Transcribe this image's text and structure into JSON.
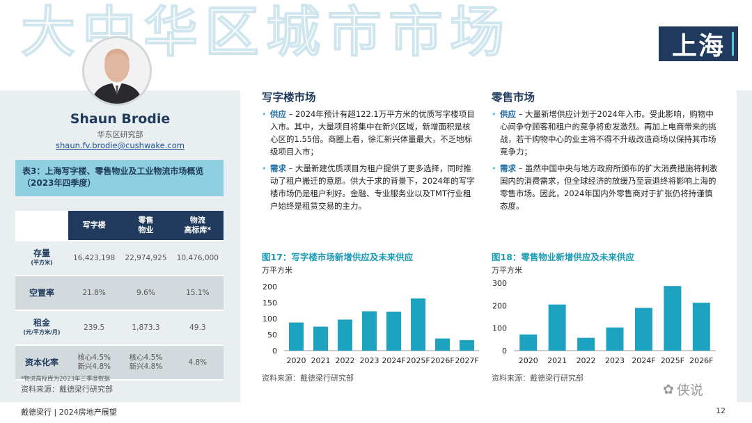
{
  "header": {
    "watermark_title": "大中华区城市市场",
    "city": "上海"
  },
  "profile": {
    "name": "Shaun Brodie",
    "dept": "华东区研究部",
    "email": "shaun.fv.brodie@cushwake.com"
  },
  "table": {
    "title": "表3：上海写字楼、零售物业及工业物流市场概览（2023年四季度）",
    "columns": [
      "写字楼",
      "零售\n物业",
      "物流\n高标库*"
    ],
    "rows": [
      {
        "label": "存量",
        "sub": "(平方米)",
        "values": [
          "16,423,198",
          "22,974,925",
          "10,476,000"
        ]
      },
      {
        "label": "空置率",
        "sub": "",
        "values": [
          "21.8%",
          "9.6%",
          "15.1%"
        ]
      },
      {
        "label": "租金",
        "sub": "(元/平方米/月)",
        "values": [
          "239.5",
          "1,873.3",
          "49.3"
        ]
      },
      {
        "label": "资本化率",
        "sub": "",
        "values": [
          "核心4.5%\n新兴4.8%",
          "核心4.5%\n新兴4.8%",
          "4.8%"
        ]
      }
    ],
    "note": "*物流高标库为2023年三季度数据",
    "source": "资料来源：戴德梁行研究部"
  },
  "office": {
    "title": "写字楼市场",
    "bullets": [
      {
        "kw": "供应",
        "text": " – 2024年预计有超122.1万平方米的优质写字楼项目入市。其中，大量项目将集中在新兴区域，新增面积是核心区的1.55倍。商圈上看，徐汇新兴体量最大，不乏地标级项目入市；"
      },
      {
        "kw": "需求",
        "text": " – 大量新建优质项目为租户提供了更多选择，同时推动了租户搬迁的意愿。供大于求的背景下，2024年的写字楼市场仍是租户利好。金融、专业服务业以及TMT行业租户始终是租赁交易的主力。"
      }
    ]
  },
  "retail": {
    "title": "零售市场",
    "bullets": [
      {
        "kw": "供应",
        "text": " – 大量新增供应计划于2024年入市。受此影响，购物中心间争夺顾客和租户的竞争将愈发激烈。再加上电商带来的挑战，若干购物中心的业主将不得不升级改造商场以保持其市场竞争力；"
      },
      {
        "kw": "需求",
        "text": " – 虽然中国中央与地方政府所颁布的扩大消费措施将刺激国内的消费需求，但全球经济的放缓乃至衰退终将影响上海的零售市场。因此，2024年国内外零售商对于扩张仍将持谨慎态度。"
      }
    ]
  },
  "chart_data": [
    {
      "type": "bar",
      "title": "图17：写字楼市场新增供应及未来供应",
      "ylabel": "万平方米",
      "categories": [
        "2020",
        "2021",
        "2022",
        "2023",
        "2024F",
        "2025F",
        "2026F",
        "2027F"
      ],
      "values": [
        88,
        75,
        97,
        123,
        122,
        163,
        38,
        33
      ],
      "ylim": [
        0,
        200
      ],
      "yticks": [
        "0",
        "50",
        "100",
        "150",
        "200"
      ],
      "color": "#1da3bf",
      "grid": false,
      "source": "资料来源：戴德梁行研究部"
    },
    {
      "type": "bar",
      "title": "图18：零售物业新增供应及未来供应",
      "ylabel": "万平方米",
      "categories": [
        "2020",
        "2021",
        "2022",
        "2023",
        "2024F",
        "2025F",
        "2026F"
      ],
      "values": [
        72,
        205,
        57,
        103,
        190,
        287,
        213
      ],
      "ylim": [
        0,
        300
      ],
      "yticks": [
        "0",
        "100",
        "200",
        "300"
      ],
      "color": "#1da3bf",
      "grid": false,
      "source": "资料来源：戴德梁行研究部"
    }
  ],
  "footer": {
    "brand": "戴德梁行 | 2024房地产展望",
    "page": "12",
    "wechat": "侠说"
  }
}
